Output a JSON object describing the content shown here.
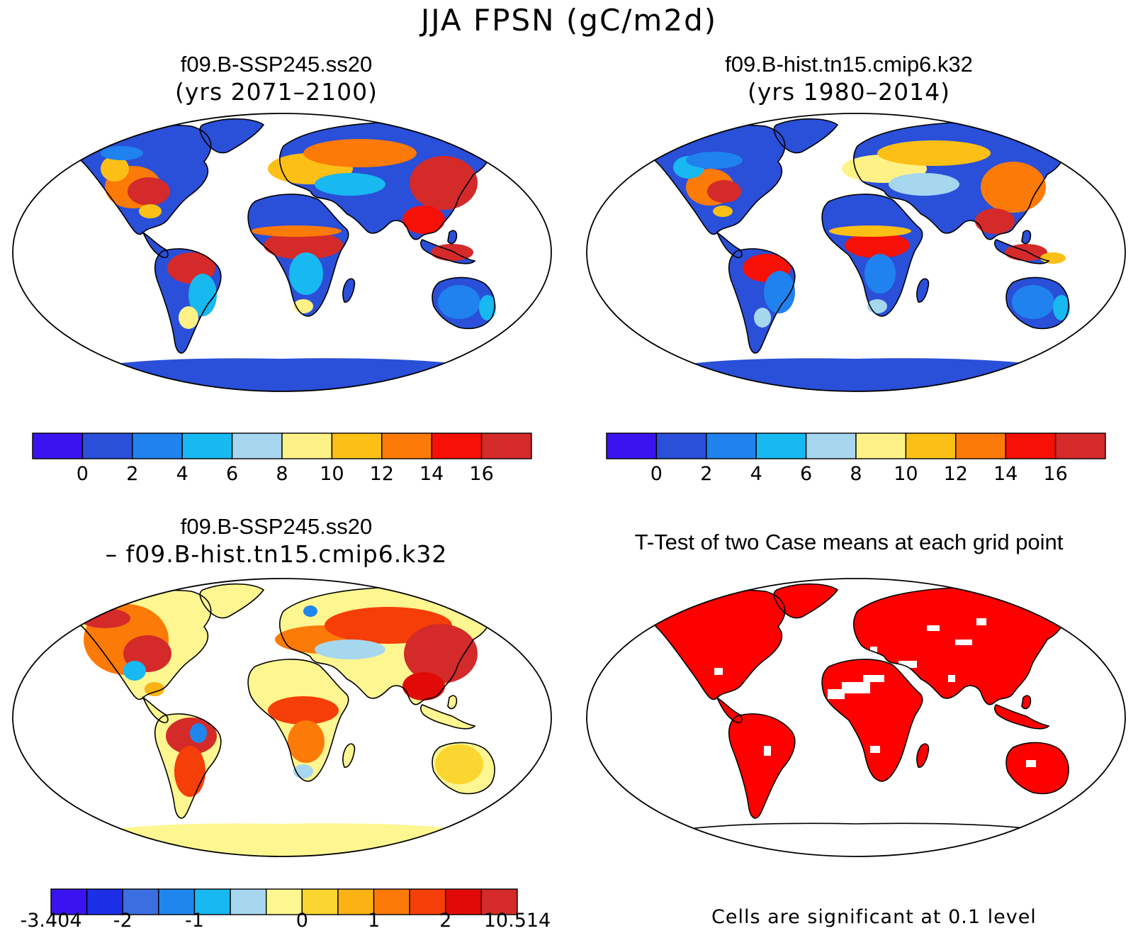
{
  "main_title": "JJA FPSN (gC/m2d)",
  "panels": [
    {
      "id": "ssp245",
      "title_line1": "f09.B-SSP245.ss20",
      "title_line2": "(yrs 2071–2100)"
    },
    {
      "id": "hist",
      "title_line1": "f09.B-hist.tn15.cmip6.k32",
      "title_line2": "(yrs 1980–2014)"
    },
    {
      "id": "diff",
      "title_line1": "f09.B-SSP245.ss20",
      "title_line2": "– f09.B-hist.tn15.cmip6.k32"
    },
    {
      "id": "ttest",
      "title_line1": "T-Test of two Case means at each grid point",
      "note": "Cells are significant at 0.1 level"
    }
  ],
  "colorbars": {
    "absolute": {
      "colors": [
        "#3a14f0",
        "#2a4fd8",
        "#1f82ee",
        "#18b8f0",
        "#a7d6ef",
        "#fef286",
        "#fcbf16",
        "#fc7a08",
        "#f61006",
        "#d42a2a"
      ],
      "tick_labels": [
        "0",
        "2",
        "4",
        "6",
        "8",
        "10",
        "12",
        "14",
        "16"
      ]
    },
    "difference": {
      "colors": [
        "#3a14f0",
        "#1c2ee6",
        "#3b6ee0",
        "#1f86ee",
        "#18b8f0",
        "#a7d6ef",
        "#fef690",
        "#fcd630",
        "#fcb212",
        "#fc7a08",
        "#f63e08",
        "#e20a06",
        "#d42a2a"
      ],
      "tick_labels": [
        "-3.404",
        "-2",
        "-1",
        "0",
        "1",
        "2",
        "10.514"
      ]
    }
  },
  "chart_data": [
    {
      "type": "heatmap",
      "title": "f09.B-SSP245.ss20 (yrs 2071–2100)",
      "variable": "JJA FPSN (gC/m2d)",
      "projection": "robinson",
      "levels": [
        0,
        2,
        4,
        6,
        8,
        10,
        12,
        14,
        16
      ],
      "colors": [
        "#3a14f0",
        "#2a4fd8",
        "#1f82ee",
        "#18b8f0",
        "#a7d6ef",
        "#fef286",
        "#fcbf16",
        "#fc7a08",
        "#f61006",
        "#d42a2a"
      ]
    },
    {
      "type": "heatmap",
      "title": "f09.B-hist.tn15.cmip6.k32 (yrs 1980–2014)",
      "variable": "JJA FPSN (gC/m2d)",
      "projection": "robinson",
      "levels": [
        0,
        2,
        4,
        6,
        8,
        10,
        12,
        14,
        16
      ],
      "colors": [
        "#3a14f0",
        "#2a4fd8",
        "#1f82ee",
        "#18b8f0",
        "#a7d6ef",
        "#fef286",
        "#fcbf16",
        "#fc7a08",
        "#f61006",
        "#d42a2a"
      ]
    },
    {
      "type": "heatmap",
      "title": "f09.B-SSP245.ss20 – f09.B-hist.tn15.cmip6.k32",
      "variable": "JJA FPSN (gC/m2d)",
      "projection": "robinson",
      "levels": [
        -3.404,
        -2,
        -1,
        0,
        1,
        2,
        10.514
      ],
      "colors": [
        "#3a14f0",
        "#1c2ee6",
        "#3b6ee0",
        "#1f86ee",
        "#18b8f0",
        "#a7d6ef",
        "#fef690",
        "#fcd630",
        "#fcb212",
        "#fc7a08",
        "#f63e08",
        "#e20a06",
        "#d42a2a"
      ]
    },
    {
      "type": "heatmap",
      "title": "T-Test of two Case means at each grid point",
      "projection": "robinson",
      "significance_level": 0.1,
      "significant_color": "#ff0000",
      "note": "Cells are significant at 0.1 level"
    }
  ]
}
